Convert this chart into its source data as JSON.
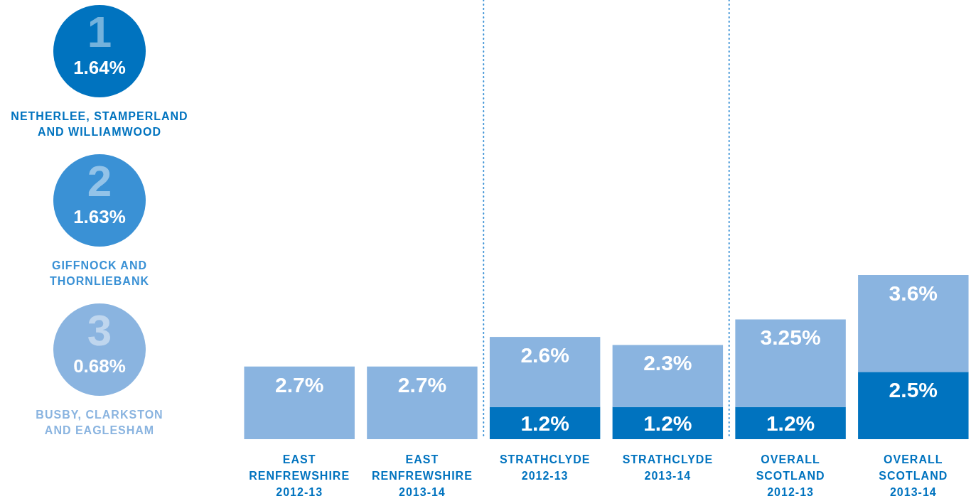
{
  "chart_data": [
    {
      "type": "other",
      "categories": [
        "NETHERLEE, STAMPERLAND\nAND WILLIAMWOOD",
        "GIFFNOCK AND\nTHORNLIEBANK",
        "BUSBY, CLARKSTON\nAND EAGLESHAM"
      ],
      "value_labels": [
        "1.64%",
        "1.63%",
        "0.68%"
      ],
      "colors": [
        "#0073bf",
        "#3a91d5",
        "#8ab4e0"
      ],
      "annotations": [
        "1",
        "2",
        "3"
      ]
    },
    {
      "type": "bar",
      "stacked": true,
      "categories": [
        "EAST\nRENFREWSHIRE\n2012-13",
        "EAST\nRENFREWSHIRE\n2013-14",
        "STRATHCLYDE\n2012-13",
        "STRATHCLYDE\n2013-14",
        "OVERALL\nSCOTLAND\n2012-13",
        "OVERALL\nSCOTLAND\n2013-14"
      ],
      "series": [
        {
          "color": "#0073bf",
          "values": [
            null,
            null,
            1.2,
            1.2,
            1.2,
            2.5
          ],
          "value_labels": [
            null,
            null,
            "1.2%",
            "1.2%",
            "1.2%",
            "2.5%"
          ]
        },
        {
          "color": "#8ab4e0",
          "values": [
            2.7,
            2.7,
            2.6,
            2.3,
            3.25,
            3.6
          ],
          "value_labels": [
            "2.7%",
            "2.7%",
            "2.6%",
            "2.3%",
            "3.25%",
            "3.6%"
          ]
        }
      ]
    }
  ]
}
